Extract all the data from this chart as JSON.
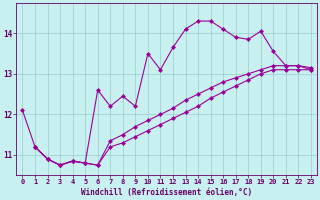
{
  "xlabel": "Windchill (Refroidissement éolien,°C)",
  "bg_color": "#c8f0f0",
  "line_color": "#990099",
  "grid_color": "#99cccc",
  "xlim": [
    -0.5,
    23.5
  ],
  "ylim": [
    10.5,
    14.75
  ],
  "yticks": [
    11,
    12,
    13,
    14
  ],
  "xticks": [
    0,
    1,
    2,
    3,
    4,
    5,
    6,
    7,
    8,
    9,
    10,
    11,
    12,
    13,
    14,
    15,
    16,
    17,
    18,
    19,
    20,
    21,
    22,
    23
  ],
  "line1_x": [
    0,
    1,
    2,
    3,
    4,
    5,
    6,
    7,
    8,
    9,
    10,
    11,
    12,
    13,
    14,
    15,
    16,
    17,
    18,
    19,
    20,
    21,
    22,
    23
  ],
  "line1_y": [
    12.1,
    11.2,
    10.9,
    10.75,
    10.85,
    10.8,
    12.6,
    12.2,
    12.45,
    12.2,
    13.5,
    13.1,
    13.65,
    14.1,
    14.3,
    14.3,
    14.1,
    13.9,
    13.85,
    14.05,
    13.55,
    13.2,
    13.2,
    13.1
  ],
  "line2_x": [
    1,
    2,
    3,
    4,
    5,
    6,
    7,
    8,
    9,
    10,
    11,
    12,
    13,
    14,
    15,
    16,
    17,
    18,
    19,
    20,
    21,
    22,
    23
  ],
  "line2_y": [
    11.2,
    10.9,
    10.75,
    10.85,
    10.8,
    10.75,
    11.35,
    11.5,
    11.7,
    11.85,
    12.0,
    12.15,
    12.35,
    12.5,
    12.65,
    12.8,
    12.9,
    13.0,
    13.1,
    13.2,
    13.2,
    13.2,
    13.15
  ],
  "line3_x": [
    1,
    2,
    3,
    4,
    5,
    6,
    7,
    8,
    9,
    10,
    11,
    12,
    13,
    14,
    15,
    16,
    17,
    18,
    19,
    20,
    21,
    22,
    23
  ],
  "line3_y": [
    11.2,
    10.9,
    10.75,
    10.85,
    10.8,
    10.75,
    11.2,
    11.3,
    11.45,
    11.6,
    11.75,
    11.9,
    12.05,
    12.2,
    12.4,
    12.55,
    12.7,
    12.85,
    13.0,
    13.1,
    13.1,
    13.1,
    13.1
  ],
  "marker": "D",
  "markersize": 2.0,
  "linewidth": 0.8,
  "tick_fontsize": 5.0,
  "xlabel_fontsize": 5.5,
  "axis_color": "#660066"
}
